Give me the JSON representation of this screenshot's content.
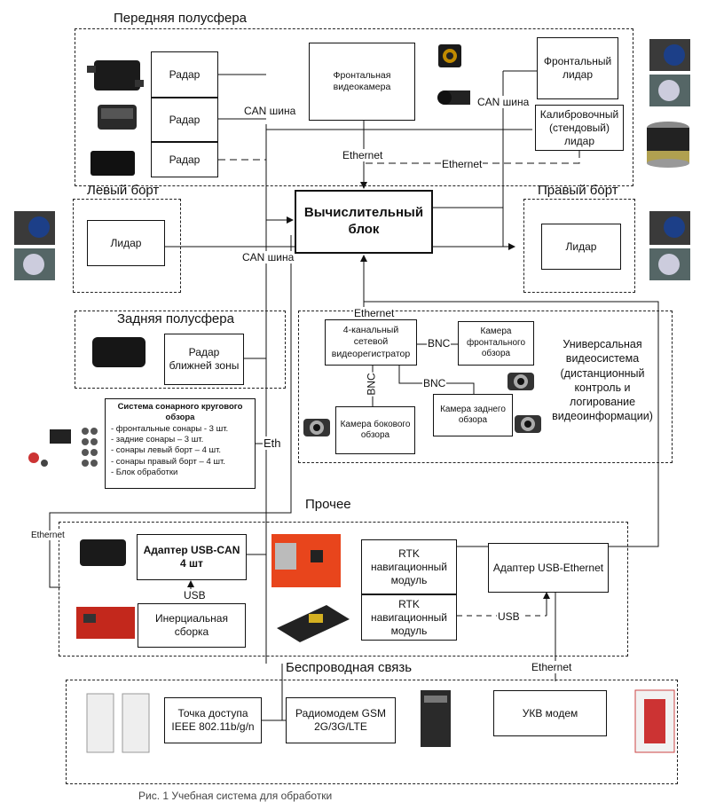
{
  "sections": {
    "front": "Передняя полусфера",
    "left": "Левый борт",
    "right": "Правый борт",
    "rear": "Задняя полусфера",
    "other": "Прочее",
    "wireless": "Беспроводная связь"
  },
  "blocks": {
    "radar1": "Радар",
    "radar2": "Радар",
    "radar3": "Радар",
    "front_camera": "Фронтальная видеокамера",
    "front_lidar": "Фронтальный лидар",
    "calib_lidar": "Калибровочный (стендовый) лидар",
    "compute": "Вычислительный блок",
    "left_lidar": "Лидар",
    "right_lidar": "Лидар",
    "near_radar": "Радар ближней зоны",
    "dvr": "4-канальный сетевой видеорегистратор",
    "cam_front_view": "Камера фронтального обзора",
    "cam_side_view": "Камера бокового обзора",
    "cam_rear_view": "Камера заднего обзора",
    "usb_can": "Адаптер USB-CAN 4 шт",
    "imu": "Инерциальная сборка",
    "rtk1": "RTK навигационный модуль",
    "rtk2": "RTK навигационный модуль",
    "usb_eth": "Адаптер USB-Ethernet",
    "wifi_ap": "Точка доступа IEEE 802.11b/g/n",
    "gsm": "Радиомодем GSM 2G/3G/LTE",
    "vhf": "УКВ модем"
  },
  "sonar": {
    "title": "Система сонарного кругового обзора",
    "items": [
      "- фронтальные сонары - 3 шт.",
      "- задние сонары – 3 шт.",
      "- сонары левый борт – 4 шт.",
      "- сонары правый борт – 4 шт.",
      "- Блок обработки"
    ]
  },
  "video_system": "Универсальная видеосистема (дистанционный контроль и логирование видеоинформации)",
  "labels": {
    "can_bus_top": "CAN шина",
    "can_bus_right": "CAN шина",
    "can_bus_left": "CAN шина",
    "ethernet_front": "Ethernet",
    "ethernet_dashed": "Ethernet",
    "ethernet_video": "Ethernet",
    "bnc1": "BNC",
    "bnc2": "BNC",
    "bnc3": "BNC",
    "eth_sonar": "Eth",
    "ethernet_left": "Ethernet",
    "usb_imu": "USB",
    "usb_rtk": "USB",
    "ethernet_wireless": "Ethernet"
  },
  "caption": "Рис. 1 Учебная система для обработки"
}
